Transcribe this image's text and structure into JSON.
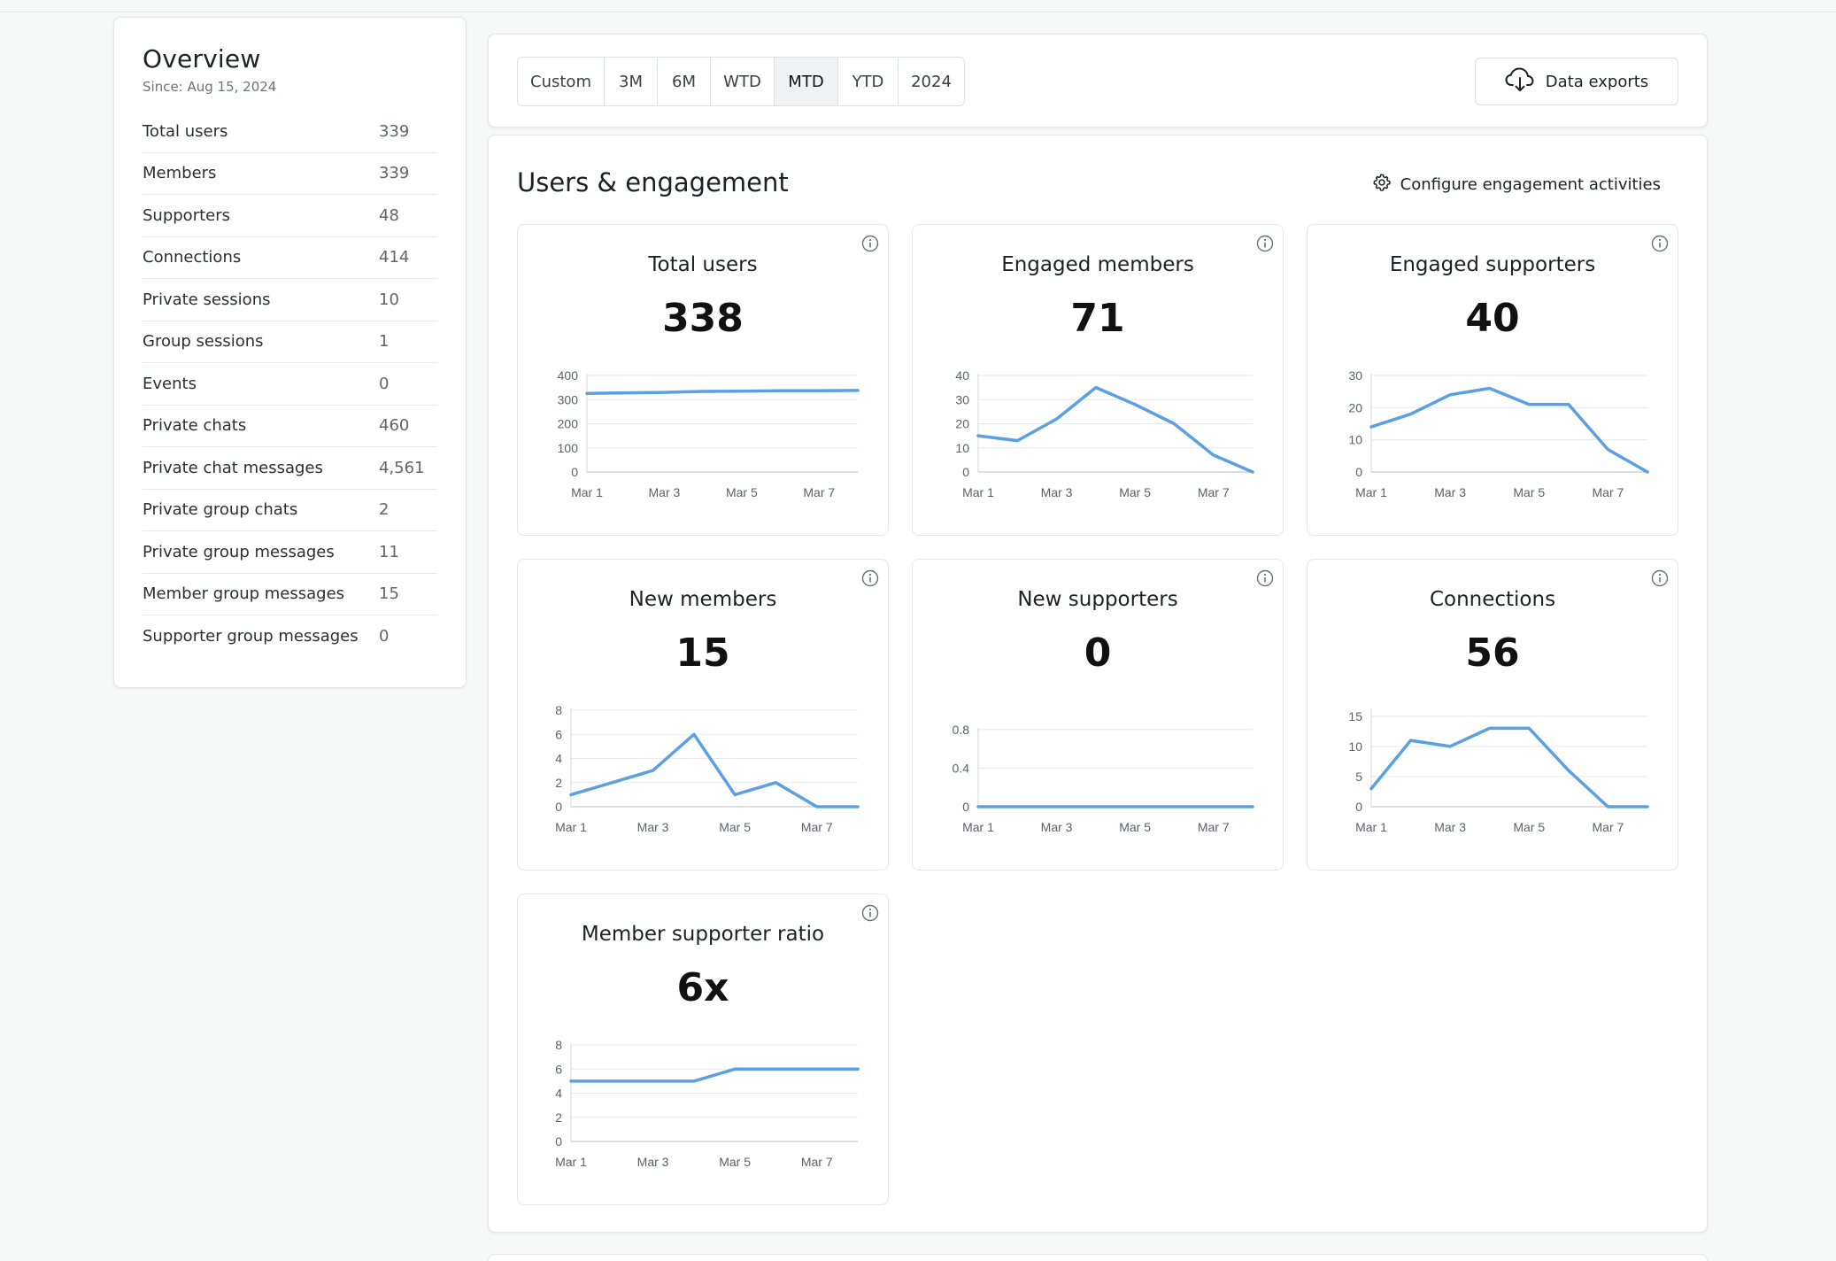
{
  "overview": {
    "title": "Overview",
    "since": "Since: Aug 15, 2024",
    "stats": [
      {
        "label": "Total users",
        "value": "339"
      },
      {
        "label": "Members",
        "value": "339"
      },
      {
        "label": "Supporters",
        "value": "48"
      },
      {
        "label": "Connections",
        "value": "414"
      },
      {
        "label": "Private sessions",
        "value": "10"
      },
      {
        "label": "Group sessions",
        "value": "1"
      },
      {
        "label": "Events",
        "value": "0"
      },
      {
        "label": "Private chats",
        "value": "460"
      },
      {
        "label": "Private chat messages",
        "value": "4,561"
      },
      {
        "label": "Private group chats",
        "value": "2"
      },
      {
        "label": "Private group messages",
        "value": "11"
      },
      {
        "label": "Member group messages",
        "value": "15"
      },
      {
        "label": "Supporter group messages",
        "value": "0"
      }
    ]
  },
  "ranges": {
    "options": [
      "Custom",
      "3M",
      "6M",
      "WTD",
      "MTD",
      "YTD",
      "2024"
    ],
    "selected": "MTD"
  },
  "exports": {
    "label": "Data exports",
    "icon": "cloud-download-icon"
  },
  "engagement": {
    "title": "Users & engagement",
    "configure_label": "Configure engagement activities",
    "configure_icon": "gear-icon"
  },
  "colors": {
    "line": "#5aa0e2",
    "grid": "#e6e8eb",
    "axis": "#9aa0a6"
  },
  "chart_data": [
    {
      "type": "line",
      "title": "Total users",
      "value": "338",
      "x": [
        "Mar 1",
        "Mar 2",
        "Mar 3",
        "Mar 4",
        "Mar 5",
        "Mar 6",
        "Mar 7",
        "Mar 8"
      ],
      "x_tick_labels": [
        "Mar 1",
        "Mar 3",
        "Mar 5",
        "Mar 7"
      ],
      "y_ticks": [
        "0",
        "100",
        "200",
        "300",
        "400"
      ],
      "ylim": [
        0,
        400
      ],
      "values": [
        326,
        328,
        330,
        334,
        335,
        337,
        337,
        338
      ]
    },
    {
      "type": "line",
      "title": "Engaged members",
      "value": "71",
      "x": [
        "Mar 1",
        "Mar 2",
        "Mar 3",
        "Mar 4",
        "Mar 5",
        "Mar 6",
        "Mar 7",
        "Mar 8"
      ],
      "x_tick_labels": [
        "Mar 1",
        "Mar 3",
        "Mar 5",
        "Mar 7"
      ],
      "y_ticks": [
        "0",
        "10",
        "20",
        "30",
        "40"
      ],
      "ylim": [
        0,
        40
      ],
      "values": [
        15,
        13,
        22,
        35,
        28,
        20,
        7,
        0
      ]
    },
    {
      "type": "line",
      "title": "Engaged supporters",
      "value": "40",
      "x": [
        "Mar 1",
        "Mar 2",
        "Mar 3",
        "Mar 4",
        "Mar 5",
        "Mar 6",
        "Mar 7",
        "Mar 8"
      ],
      "x_tick_labels": [
        "Mar 1",
        "Mar 3",
        "Mar 5",
        "Mar 7"
      ],
      "y_ticks": [
        "0",
        "10",
        "20",
        "30"
      ],
      "ylim": [
        0,
        30
      ],
      "values": [
        14,
        18,
        24,
        26,
        21,
        21,
        7,
        0
      ]
    },
    {
      "type": "line",
      "title": "New members",
      "value": "15",
      "x": [
        "Mar 1",
        "Mar 2",
        "Mar 3",
        "Mar 4",
        "Mar 5",
        "Mar 6",
        "Mar 7",
        "Mar 8"
      ],
      "x_tick_labels": [
        "Mar 1",
        "Mar 3",
        "Mar 5",
        "Mar 7"
      ],
      "y_ticks": [
        "0",
        "2",
        "4",
        "6",
        "8"
      ],
      "ylim": [
        0,
        8
      ],
      "values": [
        1,
        2,
        3,
        6,
        1,
        2,
        0,
        0
      ]
    },
    {
      "type": "line",
      "title": "New supporters",
      "value": "0",
      "x": [
        "Mar 1",
        "Mar 2",
        "Mar 3",
        "Mar 4",
        "Mar 5",
        "Mar 6",
        "Mar 7",
        "Mar 8"
      ],
      "x_tick_labels": [
        "Mar 1",
        "Mar 3",
        "Mar 5",
        "Mar 7"
      ],
      "y_ticks": [
        "0",
        "0.4",
        "0.8"
      ],
      "ylim": [
        0,
        1
      ],
      "values": [
        0,
        0,
        0,
        0,
        0,
        0,
        0,
        0
      ]
    },
    {
      "type": "line",
      "title": "Connections",
      "value": "56",
      "x": [
        "Mar 1",
        "Mar 2",
        "Mar 3",
        "Mar 4",
        "Mar 5",
        "Mar 6",
        "Mar 7",
        "Mar 8"
      ],
      "x_tick_labels": [
        "Mar 1",
        "Mar 3",
        "Mar 5",
        "Mar 7"
      ],
      "y_ticks": [
        "0",
        "5",
        "10",
        "15"
      ],
      "ylim": [
        0,
        16
      ],
      "values": [
        3,
        11,
        10,
        13,
        13,
        6,
        0,
        0
      ]
    },
    {
      "type": "line",
      "title": "Member supporter ratio",
      "value": "6x",
      "x": [
        "Mar 1",
        "Mar 2",
        "Mar 3",
        "Mar 4",
        "Mar 5",
        "Mar 6",
        "Mar 7",
        "Mar 8"
      ],
      "x_tick_labels": [
        "Mar 1",
        "Mar 3",
        "Mar 5",
        "Mar 7"
      ],
      "y_ticks": [
        "0",
        "2",
        "4",
        "6",
        "8"
      ],
      "ylim": [
        0,
        8
      ],
      "values": [
        5,
        5,
        5,
        5,
        6,
        6,
        6,
        6
      ]
    }
  ]
}
